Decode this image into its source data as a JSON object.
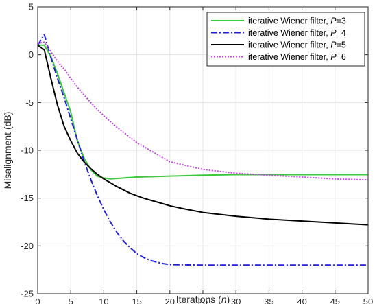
{
  "chart_data": {
    "type": "line",
    "title": "",
    "xlabel": "Iterations (n)",
    "ylabel": "Misalignment (dB)",
    "xlim": [
      0,
      50
    ],
    "ylim": [
      -25,
      5
    ],
    "xticks": [
      "0",
      "5",
      "10",
      "15",
      "20",
      "25",
      "30",
      "35",
      "40",
      "45",
      "50"
    ],
    "yticks": [
      "5",
      "0",
      "-5",
      "-10",
      "-15",
      "-20",
      "-25"
    ],
    "grid": true,
    "legend_position": "top-right",
    "series": [
      {
        "name": "iterative Wiener filter, P=3",
        "legend_prefix": "iterative Wiener filter, ",
        "legend_var": "P",
        "legend_val": "=3",
        "color": "#3cc83c",
        "style": "solid",
        "x": [
          0,
          1,
          2,
          3,
          4,
          5,
          6,
          7,
          8,
          9,
          10,
          11,
          13,
          15,
          20,
          25,
          30,
          35,
          40,
          45,
          50
        ],
        "y": [
          1.0,
          1.0,
          -0.2,
          -2.0,
          -4.0,
          -6.0,
          -9.0,
          -10.8,
          -12.0,
          -12.7,
          -12.9,
          -13.0,
          -12.9,
          -12.8,
          -12.7,
          -12.6,
          -12.55,
          -12.55,
          -12.55,
          -12.55,
          -12.55
        ]
      },
      {
        "name": "iterative Wiener filter, P=4",
        "legend_prefix": "iterative Wiener filter, ",
        "legend_var": "P",
        "legend_val": "=4",
        "color": "#2020d8",
        "style": "dashdot",
        "x": [
          0,
          1,
          2,
          3,
          4,
          5,
          6,
          7,
          8,
          9,
          10,
          11,
          12,
          13,
          14,
          15,
          16,
          17,
          18,
          19,
          20,
          25,
          30,
          35,
          40,
          45,
          50
        ],
        "y": [
          1.0,
          2.1,
          -0.3,
          -2.5,
          -4.5,
          -6.7,
          -8.9,
          -11.1,
          -13.0,
          -14.7,
          -16.2,
          -17.5,
          -18.6,
          -19.5,
          -20.2,
          -20.8,
          -21.2,
          -21.5,
          -21.7,
          -21.85,
          -21.95,
          -22.0,
          -22.0,
          -22.0,
          -22.0,
          -22.0,
          -22.0
        ]
      },
      {
        "name": "iterative Wiener filter, P=5",
        "legend_prefix": "iterative Wiener filter, ",
        "legend_var": "P",
        "legend_val": "=5",
        "color": "#000000",
        "style": "solid",
        "x": [
          0,
          1,
          2,
          3,
          4,
          5,
          6,
          7,
          8,
          9,
          10,
          12,
          14,
          16,
          18,
          20,
          22,
          25,
          30,
          35,
          40,
          45,
          50
        ],
        "y": [
          1.0,
          0.5,
          -2.5,
          -5.3,
          -7.5,
          -9.0,
          -10.3,
          -11.2,
          -11.9,
          -12.5,
          -13.0,
          -13.8,
          -14.5,
          -15.0,
          -15.4,
          -15.8,
          -16.1,
          -16.5,
          -16.9,
          -17.2,
          -17.4,
          -17.6,
          -17.8
        ]
      },
      {
        "name": "iterative Wiener filter, P=6",
        "legend_prefix": "iterative Wiener filter, ",
        "legend_var": "P",
        "legend_val": "=6",
        "color": "#c040e0",
        "style": "dotted",
        "x": [
          0,
          1,
          2,
          3,
          4,
          5,
          6,
          8,
          10,
          12,
          15,
          20,
          25,
          30,
          35,
          40,
          45,
          50
        ],
        "y": [
          1.2,
          1.3,
          0.3,
          -0.7,
          -1.5,
          -2.5,
          -3.4,
          -5.0,
          -6.4,
          -7.6,
          -9.2,
          -11.2,
          -12.0,
          -12.4,
          -12.6,
          -12.8,
          -13.0,
          -13.1
        ]
      }
    ]
  }
}
